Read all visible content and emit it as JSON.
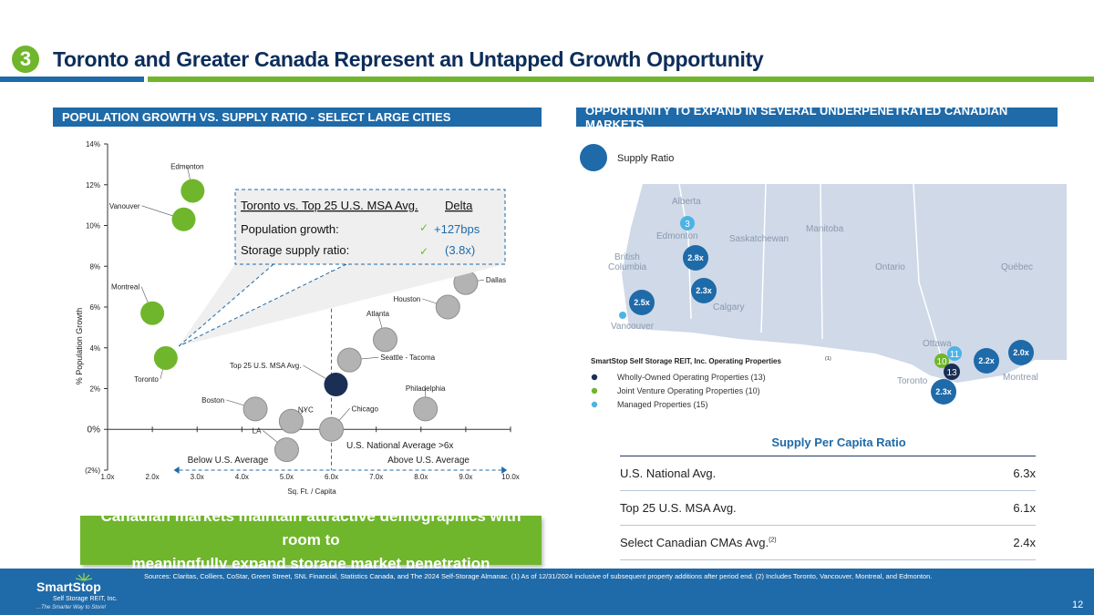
{
  "header": {
    "slide_number": "3",
    "title": "Toronto and Greater Canada Represent an Untapped Growth Opportunity"
  },
  "left_section": {
    "heading": "POPULATION GROWTH VS. SUPPLY RATIO - SELECT LARGE CITIES"
  },
  "right_section": {
    "heading": "OPPORTUNITY TO EXPAND IN SEVERAL UNDERPENETRATED CANADIAN MARKETS"
  },
  "chart_data": {
    "type": "scatter",
    "xlabel": "Sq. Ft. / Capita",
    "ylabel": "% Population Growth",
    "xlim": [
      1.0,
      10.0
    ],
    "ylim": [
      -2,
      14
    ],
    "x_ticks": [
      "1.0x",
      "2.0x",
      "3.0x",
      "4.0x",
      "5.0x",
      "6.0x",
      "7.0x",
      "8.0x",
      "9.0x",
      "10.0x"
    ],
    "y_ticks": [
      "(2%)",
      "0%",
      "2%",
      "4%",
      "6%",
      "8%",
      "10%",
      "12%",
      "14%"
    ],
    "colors": {
      "canada": "#70b62c",
      "us": "#b3b3b3",
      "top25": "#1b2f55"
    },
    "points": [
      {
        "label": "Edmonton",
        "x": 2.9,
        "y": 11.7,
        "group": "canada"
      },
      {
        "label": "Vanouver",
        "x": 2.7,
        "y": 10.3,
        "group": "canada"
      },
      {
        "label": "Montreal",
        "x": 2.0,
        "y": 5.7,
        "group": "canada"
      },
      {
        "label": "Toronto",
        "x": 2.3,
        "y": 3.5,
        "group": "canada"
      },
      {
        "label": "Dallas",
        "x": 9.0,
        "y": 7.2,
        "group": "us"
      },
      {
        "label": "Houston",
        "x": 8.6,
        "y": 6.0,
        "group": "us"
      },
      {
        "label": "Atlanta",
        "x": 7.2,
        "y": 4.4,
        "group": "us"
      },
      {
        "label": "Top 25 U.S. MSA Avg.",
        "x": 6.1,
        "y": 2.2,
        "group": "top25"
      },
      {
        "label": "Seattle - Tacoma",
        "x": 6.4,
        "y": 3.4,
        "group": "us"
      },
      {
        "label": "Philadelphia",
        "x": 8.1,
        "y": 1.0,
        "group": "us"
      },
      {
        "label": "Boston",
        "x": 4.3,
        "y": 1.0,
        "group": "us"
      },
      {
        "label": "NYC",
        "x": 5.1,
        "y": 0.4,
        "group": "us"
      },
      {
        "label": "Chicago",
        "x": 6.0,
        "y": 0.0,
        "group": "us"
      },
      {
        "label": "LA",
        "x": 5.0,
        "y": -1.0,
        "group": "us"
      }
    ],
    "annotations": {
      "divider_label": "U.S. National Average >6x",
      "below_label": "Below U.S. Average",
      "above_label": "Above U.S. Average"
    },
    "callout": {
      "header_left": "Toronto vs. Top 25 U.S. MSA Avg.",
      "header_right": "Delta",
      "row1_label": "Population growth:",
      "row1_value": "+127bps",
      "row2_label": "Storage supply ratio:",
      "row2_value": "(3.8x)",
      "check": "✓"
    }
  },
  "map": {
    "legend_bubble_label": "Supply Ratio",
    "regions": [
      "Alberta",
      "Manitoba",
      "Saskatchewan",
      "British",
      "Columbia",
      "Ontario",
      "Québec"
    ],
    "cities": [
      "Edmonton",
      "Calgary",
      "Vancouver",
      "Ottawa",
      "Toronto",
      "Montreal"
    ],
    "bubbles": [
      "3",
      "2.8x",
      "2.3x",
      "2.5x",
      "2.0x",
      "2.2x",
      "2.3x",
      "10",
      "11",
      "13"
    ],
    "legend_title": "SmartStop Self Storage REIT, Inc. Operating Properties",
    "legend_title_sup": "(1)",
    "legend_items": [
      {
        "label": "Wholly-Owned Operating Properties (13)",
        "color": "#1b2f55"
      },
      {
        "label": "Joint Venture Operating Properties (10)",
        "color": "#70b62c"
      },
      {
        "label": "Managed Properties (15)",
        "color": "#4db3e6"
      }
    ]
  },
  "supply_per_capita": {
    "title": "Supply Per Capita Ratio",
    "rows": [
      {
        "label": "U.S. National Avg.",
        "sup": "",
        "value": "6.3x"
      },
      {
        "label": "Top 25 U.S. MSA Avg.",
        "sup": "",
        "value": "6.1x"
      },
      {
        "label": "Select Canadian CMAs Avg.",
        "sup": "(2)",
        "value": "2.4x"
      }
    ]
  },
  "highlight_box": {
    "line1": "Canadian markets maintain attractive demographics with room to",
    "line2": "meaningfully expand storage market penetration"
  },
  "footer": {
    "sources": "Sources: Claritas, Colliers, CoStar, Green Street, SNL Financial, Statistics Canada, and The 2024 Self-Storage Almanac. (1) As of 12/31/2024 inclusive of subsequent property additions after period end. (2) Includes Toronto, Vancouver, Montreal, and Edmonton.",
    "logo_name": "SmartStop",
    "logo_sub": "Self Storage REIT, Inc.",
    "logo_tag": "...The Smarter Way to Store!",
    "page_number": "12"
  }
}
